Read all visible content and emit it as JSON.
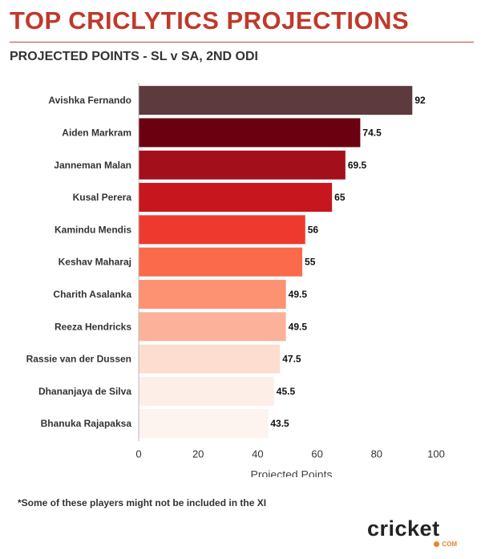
{
  "header": {
    "title": "TOP CRICLYTICS PROJECTIONS",
    "subtitle": "PROJECTED POINTS - SL v SA, 2ND ODI"
  },
  "footnote": "*Some of these players might not be included in the XI",
  "logo": {
    "word": "cricket",
    "suffix": "COM"
  },
  "chart_data": {
    "type": "bar",
    "orientation": "horizontal",
    "categories": [
      "Avishka Fernando",
      "Aiden Markram",
      "Janneman Malan",
      "Kusal Perera",
      "Kamindu Mendis",
      "Keshav Maharaj",
      "Charith Asalanka",
      "Reeza Hendricks",
      "Rassie van der Dussen",
      "Dhananjaya de Silva",
      "Bhanuka Rajapaksa"
    ],
    "values": [
      92,
      74.5,
      69.5,
      65,
      56,
      55,
      49.5,
      49.5,
      47.5,
      45.5,
      43.5
    ],
    "value_labels": [
      "92",
      "74.5",
      "69.5",
      "65",
      "56",
      "55",
      "49.5",
      "49.5",
      "47.5",
      "45.5",
      "43.5"
    ],
    "colors": [
      "#5c3a3d",
      "#6b0010",
      "#a3101c",
      "#c8161e",
      "#ee3a2e",
      "#fb6a4a",
      "#fc9272",
      "#fcb29a",
      "#fdddd0",
      "#fdeee8",
      "#fdf3ef"
    ],
    "xlabel": "Projected Points",
    "ylabel": "",
    "xlim": [
      0,
      100
    ],
    "xticks": [
      0,
      20,
      40,
      60,
      80,
      100
    ],
    "grid": false,
    "legend": "none"
  }
}
